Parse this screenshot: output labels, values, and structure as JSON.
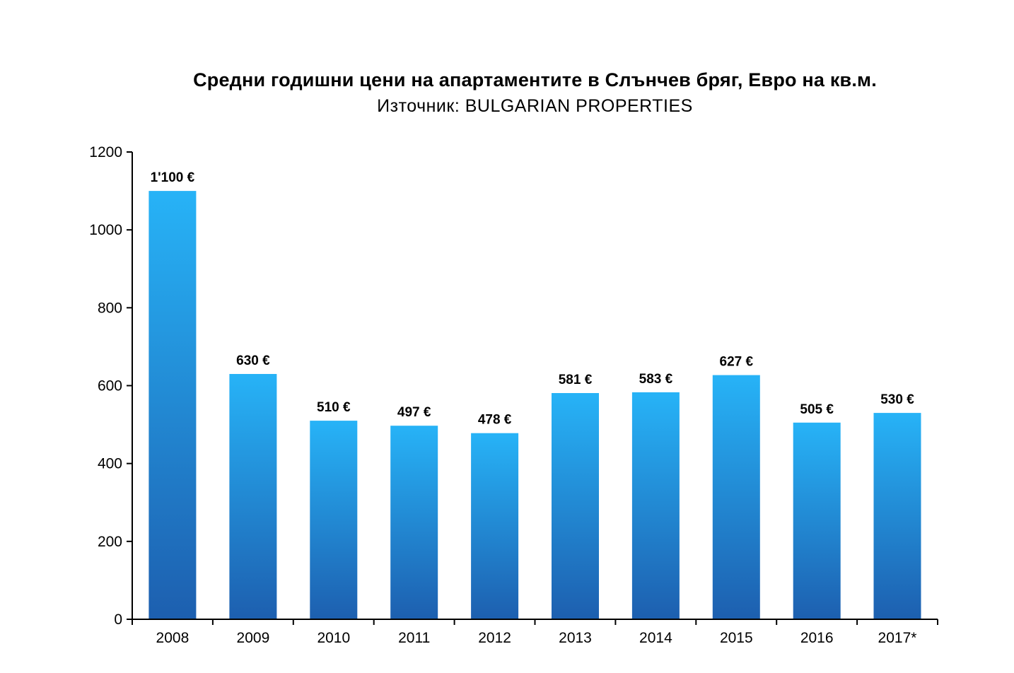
{
  "chart": {
    "title": "Средни годишни цени на апартаментите в Слънчев бряг, Евро на кв.м.",
    "subtitle": "Източник: BULGARIAN PROPERTIES",
    "colors": {
      "bar_gradient_top": "#27B3F7",
      "bar_gradient_bottom": "#1D5FAF",
      "axis": "#000000",
      "tick_label": "#000000",
      "value_label": "#000000",
      "background": "#FFFFFF"
    }
  },
  "chart_data": {
    "type": "bar",
    "title": "Средни годишни цени на апартаментите в Слънчев бряг, Евро на кв.м.",
    "subtitle": "Източник: BULGARIAN PROPERTIES",
    "categories": [
      "2008",
      "2009",
      "2010",
      "2011",
      "2012",
      "2013",
      "2014",
      "2015",
      "2016",
      "2017*"
    ],
    "values": [
      1100,
      630,
      510,
      497,
      478,
      581,
      583,
      627,
      505,
      530
    ],
    "value_labels": [
      "1'100 €",
      "630 €",
      "510 €",
      "497 €",
      "478 €",
      "581 €",
      "583 €",
      "627 €",
      "505 €",
      "530 €"
    ],
    "xlabel": "",
    "ylabel": "",
    "ylim": [
      0,
      1200
    ],
    "ytick_interval": 200,
    "ytick_labels": [
      "0",
      "200",
      "400",
      "600",
      "800",
      "1000",
      "1200"
    ],
    "grid": false,
    "legend": false
  }
}
